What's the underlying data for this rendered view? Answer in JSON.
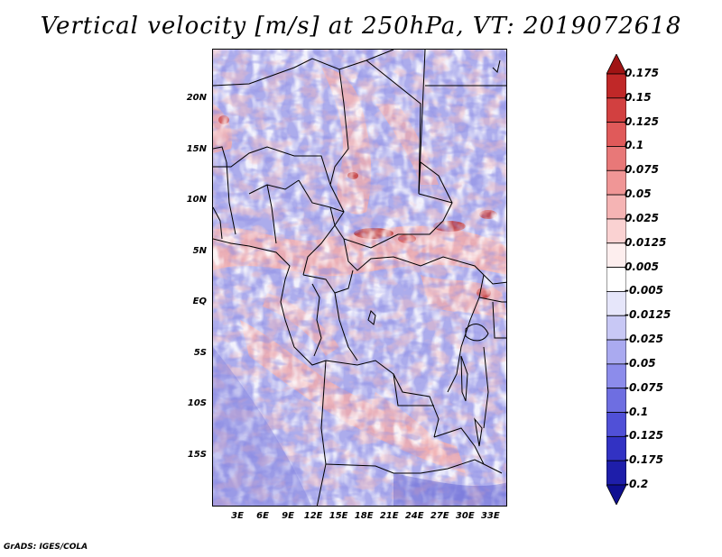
{
  "title": "Vertical velocity [m/s] at 250hPa, VT: 2019072618",
  "footer": "GrADS: IGES/COLA",
  "map": {
    "lon_range": [
      0,
      35
    ],
    "lat_range": [
      -20,
      25
    ],
    "y_axis_labels": [
      "20N",
      "15N",
      "10N",
      "5N",
      "EQ",
      "5S",
      "10S",
      "15S"
    ],
    "y_axis_values": [
      20,
      15,
      10,
      5,
      0,
      -5,
      -10,
      -15
    ],
    "x_axis_labels": [
      "3E",
      "6E",
      "9E",
      "12E",
      "15E",
      "18E",
      "21E",
      "24E",
      "27E",
      "30E",
      "33E"
    ],
    "x_axis_values": [
      3,
      6,
      9,
      12,
      15,
      18,
      21,
      24,
      27,
      30,
      33
    ]
  },
  "colorbar": {
    "labels": [
      "0.175",
      "0.15",
      "0.125",
      "0.1",
      "0.075",
      "0.05",
      "0.025",
      "0.0125",
      "0.005",
      "-0.005",
      "-0.0125",
      "-0.025",
      "-0.05",
      "-0.075",
      "-0.1",
      "-0.125",
      "-0.175",
      "-0.2"
    ],
    "colors": [
      "#a01414",
      "#c02828",
      "#d24040",
      "#e05a5a",
      "#e87878",
      "#f09696",
      "#f5b4b4",
      "#fad2d2",
      "#fdeeee",
      "#ffffff",
      "#e6e6fa",
      "#c8c8f5",
      "#aaaaf0",
      "#8c8ceb",
      "#6e6ee1",
      "#5050d7",
      "#3232c3",
      "#1e1eaa",
      "#0f0f91"
    ]
  },
  "colors": {
    "background_blue": "#9a9ae8",
    "light_blue": "#c4c4f2",
    "white": "#ffffff",
    "light_red": "#f2aaaa",
    "red": "#e07070",
    "dark_red": "#b42828",
    "dark_blue": "#4848c8",
    "border": "#000000"
  }
}
